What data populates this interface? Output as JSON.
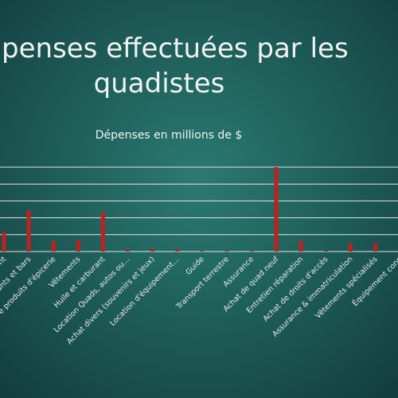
{
  "chart_data": {
    "type": "bar",
    "title": [
      "penses effectuées par les",
      "quadistes"
    ],
    "subtitle": "Dépenses en millions de $",
    "categories": [
      "ent",
      "ants et bars",
      "e produits d'épicerie",
      "Vêtements",
      "Huile et carburant",
      "Location Quads, autos ou…",
      "Achat divers (souvenirs et jeux)",
      "Location d'équipement…",
      "Guide",
      "Transport terrestre",
      "Assurance",
      "Achat de quad neuf",
      "Entretien réparation",
      "Achat de droits d'accès",
      "Assurance & immatriculation",
      "Vêtements spécialisés",
      "Équipement conn"
    ],
    "values": [
      115,
      245,
      65,
      70,
      235,
      10,
      15,
      15,
      5,
      5,
      5,
      500,
      65,
      3,
      50,
      50,
      null
    ],
    "color": "#c0201e",
    "ylim": [
      0,
      500
    ],
    "yticks": [
      0,
      100,
      200,
      300,
      400,
      500
    ],
    "grid": true
  }
}
